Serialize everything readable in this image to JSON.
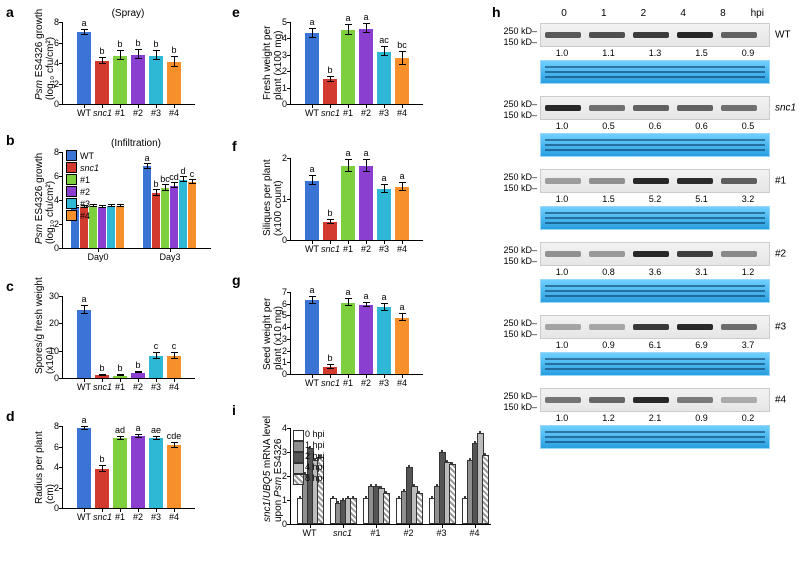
{
  "colors": {
    "WT": "#3b74d4",
    "snc1": "#d23a2e",
    "g1": "#7dcf3d",
    "g2": "#8b3fd1",
    "g3": "#2fb8d6",
    "g4": "#f7902a",
    "hpi0": "#ffffff",
    "hpi1": "#8f8f8f",
    "hpi2": "#555555",
    "hpi4": "#bcbcbc",
    "hpi8_pattern": "#dcdcdc"
  },
  "genotype_labels": [
    "WT",
    "snc1",
    "#1",
    "#2",
    "#3",
    "#4"
  ],
  "italic_index": 1,
  "panels": {
    "a": {
      "title": "(Spray)",
      "ylabel": "Psm ES4326 growth\n(log₁₀ cfu/cm²)",
      "yrange": [
        0,
        8
      ],
      "ytick": 2,
      "values": [
        7.0,
        4.2,
        4.7,
        4.8,
        4.7,
        4.1
      ],
      "err": [
        0.25,
        0.3,
        0.45,
        0.45,
        0.45,
        0.45
      ],
      "sig": [
        "a",
        "b",
        "b",
        "b",
        "b",
        "b"
      ]
    },
    "b": {
      "title": "(Infiltration)",
      "ylabel": "Psm ES4326 growth\n(log₁₀ cfu/cm²)",
      "yrange": [
        0,
        8
      ],
      "ytick": 2,
      "groups": [
        "Day0",
        "Day3"
      ],
      "values": {
        "Day0": [
          3.4,
          3.4,
          3.5,
          3.4,
          3.5,
          3.5
        ],
        "Day3": [
          6.8,
          4.6,
          5.0,
          5.2,
          5.7,
          5.5
        ]
      },
      "err": {
        "Day0": [
          0.1,
          0.1,
          0.1,
          0.1,
          0.1,
          0.1
        ],
        "Day3": [
          0.2,
          0.25,
          0.25,
          0.2,
          0.2,
          0.2
        ]
      },
      "sig": {
        "Day0": [
          "",
          "",
          "",
          "",
          "",
          ""
        ],
        "Day3": [
          "a",
          "b",
          "bc",
          "cd",
          "d",
          "c"
        ]
      }
    },
    "c": {
      "ylabel": "Spores/g fresh weight\n(x10⁴)",
      "yrange": [
        0,
        30
      ],
      "ytick": 10,
      "values": [
        25,
        1.0,
        0.8,
        2.0,
        8.0,
        8.0
      ],
      "err": [
        1.5,
        0.2,
        0.2,
        0.3,
        1.0,
        1.0
      ],
      "sig": [
        "a",
        "b",
        "b",
        "b",
        "c",
        "c"
      ]
    },
    "d": {
      "ylabel": "Radius per plant\n(cm)",
      "yrange": [
        0,
        8
      ],
      "ytick": 2,
      "values": [
        7.8,
        3.8,
        6.8,
        7.0,
        6.8,
        6.1
      ],
      "err": [
        0.15,
        0.3,
        0.15,
        0.15,
        0.15,
        0.2
      ],
      "sig": [
        "a",
        "b",
        "ad",
        "a",
        "ae",
        "cde"
      ]
    },
    "e": {
      "ylabel": "Fresh weight per\nplant (x100 mg)",
      "yrange": [
        0,
        5
      ],
      "ytick": 1,
      "values": [
        4.3,
        1.5,
        4.5,
        4.6,
        3.2,
        2.8
      ],
      "err": [
        0.3,
        0.15,
        0.3,
        0.3,
        0.3,
        0.4
      ],
      "sig": [
        "a",
        "b",
        "a",
        "a",
        "ac",
        "bc"
      ]
    },
    "f": {
      "ylabel": "Siliques per plant\n(x100 count)",
      "yrange": [
        0,
        2
      ],
      "ytick": 1,
      "values": [
        1.45,
        0.45,
        1.8,
        1.8,
        1.25,
        1.3
      ],
      "err": [
        0.1,
        0.05,
        0.15,
        0.15,
        0.1,
        0.1
      ],
      "sig": [
        "a",
        "b",
        "a",
        "a",
        "a",
        "a"
      ]
    },
    "g": {
      "ylabel": "Seed weight per\nplant (x10 mg)",
      "yrange": [
        0,
        7
      ],
      "ytick": 1,
      "values": [
        6.3,
        0.6,
        6.1,
        5.9,
        5.7,
        4.8
      ],
      "err": [
        0.3,
        0.15,
        0.3,
        0.2,
        0.3,
        0.3
      ],
      "sig": [
        "a",
        "b",
        "a",
        "a",
        "a",
        "a"
      ]
    },
    "i": {
      "ylabel": "snc1/UBQ5 mRNA level\nupon Psm ES4326",
      "yrange": [
        0,
        4
      ],
      "ytick": 1,
      "hpi": [
        "0 hpi",
        "1 hpi",
        "2 hpi",
        "4 hpi",
        "8 hpi"
      ],
      "values": {
        "WT": [
          1.0,
          2.0,
          3.1,
          2.6,
          2.7
        ],
        "snc1": [
          1.0,
          0.8,
          0.9,
          1.0,
          1.0
        ],
        "#1": [
          1.0,
          1.5,
          1.5,
          1.4,
          1.2
        ],
        "#2": [
          1.0,
          1.3,
          2.3,
          1.5,
          1.2
        ],
        "#3": [
          1.0,
          1.5,
          2.9,
          2.5,
          2.4
        ],
        "#4": [
          1.0,
          2.6,
          3.3,
          3.7,
          2.8
        ]
      }
    },
    "h": {
      "hpi_header": [
        "0",
        "1",
        "2",
        "4",
        "8"
      ],
      "hpi_label": "hpi",
      "mw": [
        "250 kD–",
        "150 kD–"
      ],
      "samples": [
        "WT",
        "snc1",
        "#1",
        "#2",
        "#3",
        "#4"
      ],
      "italic_samples": [
        1
      ],
      "intensities": {
        "WT": [
          1.0,
          1.1,
          1.3,
          1.5,
          0.9
        ],
        "snc1": [
          1.0,
          0.5,
          0.6,
          0.6,
          0.5
        ],
        "#1": [
          1.0,
          1.5,
          5.2,
          5.1,
          3.2
        ],
        "#2": [
          1.0,
          0.8,
          3.6,
          3.1,
          1.2
        ],
        "#3": [
          1.0,
          0.9,
          6.1,
          6.9,
          3.7
        ],
        "#4": [
          1.0,
          1.2,
          2.1,
          0.9,
          0.2
        ]
      }
    }
  }
}
